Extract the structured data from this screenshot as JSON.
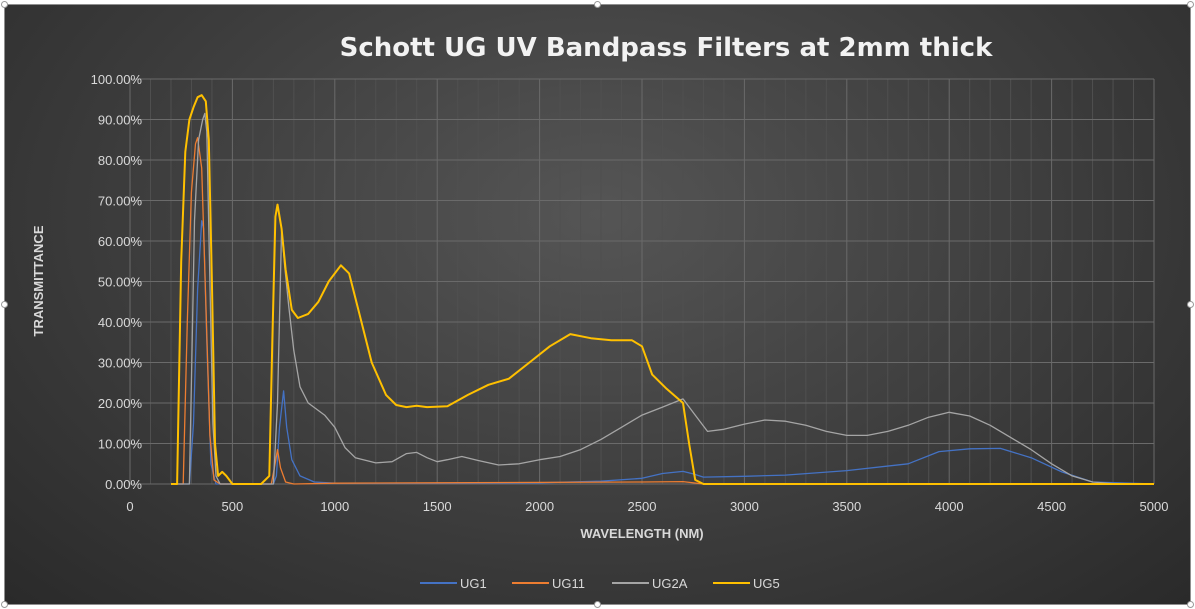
{
  "chart_data": {
    "type": "line",
    "title": "Schott UG UV Bandpass Filters at 2mm thick",
    "xlabel": "WAVELENGTH (NM)",
    "ylabel": "TRANSMITTANCE",
    "xlim": [
      0,
      5000
    ],
    "ylim": [
      0,
      1
    ],
    "x_ticks": [
      "0",
      "500",
      "1000",
      "1500",
      "2000",
      "2500",
      "3000",
      "3500",
      "4000",
      "4500",
      "5000"
    ],
    "y_ticks": [
      "0.00%",
      "10.00%",
      "20.00%",
      "30.00%",
      "40.00%",
      "50.00%",
      "60.00%",
      "70.00%",
      "80.00%",
      "90.00%",
      "100.00%"
    ],
    "grid": true,
    "legend_position": "bottom",
    "series": [
      {
        "name": "UG1",
        "color": "#4472c4",
        "points": [
          [
            200,
            0
          ],
          [
            290,
            0
          ],
          [
            310,
            0.15
          ],
          [
            330,
            0.48
          ],
          [
            350,
            0.65
          ],
          [
            360,
            0.63
          ],
          [
            375,
            0.35
          ],
          [
            395,
            0.05
          ],
          [
            420,
            0
          ],
          [
            700,
            0
          ],
          [
            715,
            0.02
          ],
          [
            730,
            0.14
          ],
          [
            750,
            0.23
          ],
          [
            765,
            0.14
          ],
          [
            790,
            0.06
          ],
          [
            830,
            0.02
          ],
          [
            900,
            0.005
          ],
          [
            1000,
            0.002
          ],
          [
            1500,
            0.002
          ],
          [
            2000,
            0.003
          ],
          [
            2300,
            0.007
          ],
          [
            2500,
            0.014
          ],
          [
            2600,
            0.026
          ],
          [
            2700,
            0.031
          ],
          [
            2750,
            0.025
          ],
          [
            2800,
            0.017
          ],
          [
            3000,
            0.019
          ],
          [
            3200,
            0.022
          ],
          [
            3500,
            0.033
          ],
          [
            3800,
            0.05
          ],
          [
            3950,
            0.08
          ],
          [
            4100,
            0.087
          ],
          [
            4250,
            0.088
          ],
          [
            4400,
            0.065
          ],
          [
            4550,
            0.03
          ],
          [
            4700,
            0.005
          ],
          [
            5000,
            0
          ]
        ]
      },
      {
        "name": "UG11",
        "color": "#ed7d31",
        "points": [
          [
            200,
            0
          ],
          [
            260,
            0
          ],
          [
            280,
            0.4
          ],
          [
            300,
            0.72
          ],
          [
            320,
            0.84
          ],
          [
            330,
            0.855
          ],
          [
            350,
            0.78
          ],
          [
            370,
            0.45
          ],
          [
            390,
            0.12
          ],
          [
            410,
            0.01
          ],
          [
            440,
            0
          ],
          [
            690,
            0
          ],
          [
            705,
            0.04
          ],
          [
            720,
            0.085
          ],
          [
            735,
            0.04
          ],
          [
            760,
            0.005
          ],
          [
            800,
            0
          ],
          [
            1000,
            0.002
          ],
          [
            1500,
            0.003
          ],
          [
            2000,
            0.004
          ],
          [
            2500,
            0.005
          ],
          [
            2700,
            0.006
          ],
          [
            2800,
            0
          ],
          [
            5000,
            0
          ]
        ]
      },
      {
        "name": "UG2A",
        "color": "#a5a5a5",
        "points": [
          [
            200,
            0
          ],
          [
            290,
            0
          ],
          [
            300,
            0.25
          ],
          [
            315,
            0.65
          ],
          [
            335,
            0.85
          ],
          [
            355,
            0.9
          ],
          [
            365,
            0.915
          ],
          [
            375,
            0.87
          ],
          [
            390,
            0.5
          ],
          [
            405,
            0.15
          ],
          [
            420,
            0.02
          ],
          [
            440,
            0
          ],
          [
            700,
            0
          ],
          [
            720,
            0.2
          ],
          [
            740,
            0.63
          ],
          [
            755,
            0.54
          ],
          [
            775,
            0.44
          ],
          [
            800,
            0.33
          ],
          [
            830,
            0.24
          ],
          [
            870,
            0.2
          ],
          [
            950,
            0.17
          ],
          [
            1000,
            0.14
          ],
          [
            1050,
            0.09
          ],
          [
            1100,
            0.065
          ],
          [
            1200,
            0.052
          ],
          [
            1280,
            0.055
          ],
          [
            1350,
            0.075
          ],
          [
            1400,
            0.078
          ],
          [
            1450,
            0.065
          ],
          [
            1500,
            0.055
          ],
          [
            1550,
            0.06
          ],
          [
            1620,
            0.068
          ],
          [
            1700,
            0.058
          ],
          [
            1800,
            0.047
          ],
          [
            1900,
            0.05
          ],
          [
            2000,
            0.06
          ],
          [
            2100,
            0.068
          ],
          [
            2200,
            0.085
          ],
          [
            2300,
            0.11
          ],
          [
            2400,
            0.14
          ],
          [
            2500,
            0.17
          ],
          [
            2600,
            0.19
          ],
          [
            2700,
            0.21
          ],
          [
            2760,
            0.17
          ],
          [
            2820,
            0.13
          ],
          [
            2900,
            0.135
          ],
          [
            3000,
            0.148
          ],
          [
            3100,
            0.158
          ],
          [
            3200,
            0.155
          ],
          [
            3300,
            0.145
          ],
          [
            3400,
            0.13
          ],
          [
            3500,
            0.12
          ],
          [
            3600,
            0.12
          ],
          [
            3700,
            0.13
          ],
          [
            3800,
            0.145
          ],
          [
            3900,
            0.165
          ],
          [
            4000,
            0.177
          ],
          [
            4100,
            0.168
          ],
          [
            4200,
            0.145
          ],
          [
            4300,
            0.115
          ],
          [
            4400,
            0.085
          ],
          [
            4500,
            0.05
          ],
          [
            4600,
            0.02
          ],
          [
            4700,
            0.005
          ],
          [
            4800,
            0.001
          ],
          [
            5000,
            0
          ]
        ]
      },
      {
        "name": "UG5",
        "color": "#ffc000",
        "points": [
          [
            200,
            0
          ],
          [
            230,
            0
          ],
          [
            250,
            0.55
          ],
          [
            270,
            0.82
          ],
          [
            290,
            0.9
          ],
          [
            310,
            0.93
          ],
          [
            330,
            0.955
          ],
          [
            350,
            0.96
          ],
          [
            370,
            0.945
          ],
          [
            385,
            0.85
          ],
          [
            400,
            0.5
          ],
          [
            415,
            0.1
          ],
          [
            430,
            0.02
          ],
          [
            450,
            0.03
          ],
          [
            470,
            0.02
          ],
          [
            500,
            0
          ],
          [
            640,
            0
          ],
          [
            680,
            0.02
          ],
          [
            695,
            0.35
          ],
          [
            710,
            0.66
          ],
          [
            720,
            0.69
          ],
          [
            740,
            0.63
          ],
          [
            760,
            0.53
          ],
          [
            790,
            0.43
          ],
          [
            820,
            0.41
          ],
          [
            870,
            0.42
          ],
          [
            920,
            0.45
          ],
          [
            970,
            0.5
          ],
          [
            1030,
            0.54
          ],
          [
            1070,
            0.52
          ],
          [
            1120,
            0.42
          ],
          [
            1180,
            0.3
          ],
          [
            1250,
            0.22
          ],
          [
            1300,
            0.195
          ],
          [
            1350,
            0.19
          ],
          [
            1400,
            0.193
          ],
          [
            1450,
            0.19
          ],
          [
            1550,
            0.192
          ],
          [
            1650,
            0.22
          ],
          [
            1750,
            0.245
          ],
          [
            1850,
            0.26
          ],
          [
            1950,
            0.3
          ],
          [
            2050,
            0.34
          ],
          [
            2150,
            0.37
          ],
          [
            2250,
            0.36
          ],
          [
            2350,
            0.355
          ],
          [
            2450,
            0.355
          ],
          [
            2500,
            0.34
          ],
          [
            2550,
            0.27
          ],
          [
            2620,
            0.235
          ],
          [
            2700,
            0.2
          ],
          [
            2730,
            0.1
          ],
          [
            2760,
            0.01
          ],
          [
            2800,
            0
          ],
          [
            5000,
            0
          ]
        ]
      }
    ]
  }
}
